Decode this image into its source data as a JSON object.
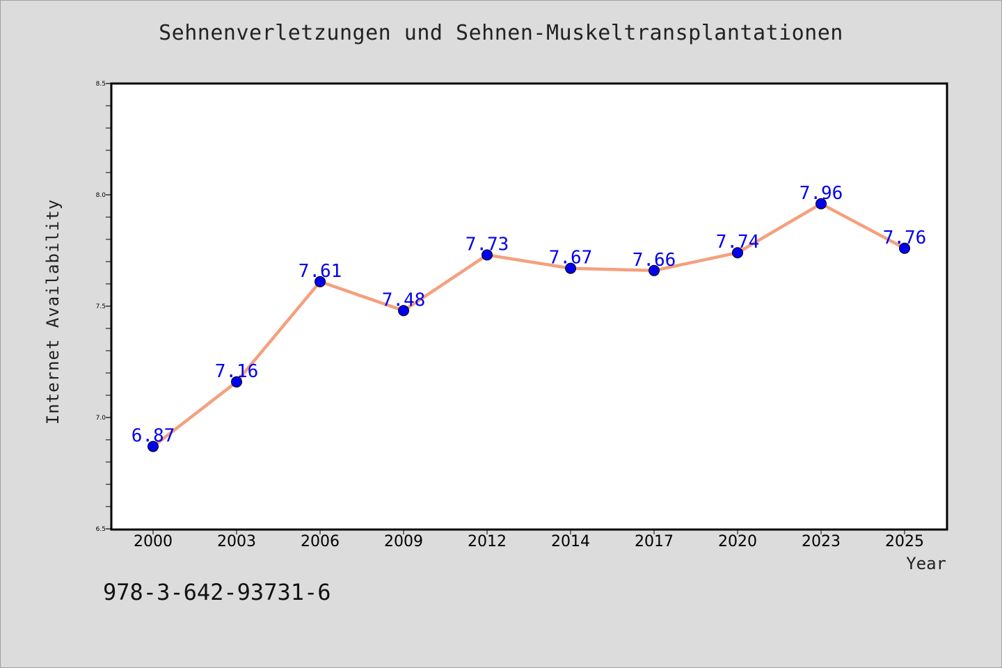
{
  "chart_data": {
    "type": "line",
    "title": "Sehnenverletzungen und Sehnen-Muskeltransplantationen",
    "xlabel": "Year",
    "ylabel": "Internet Availability",
    "categories": [
      "2000",
      "2003",
      "2006",
      "2009",
      "2012",
      "2014",
      "2017",
      "2020",
      "2023",
      "2025"
    ],
    "series": [
      {
        "values": [
          6.87,
          7.16,
          7.61,
          7.48,
          7.73,
          7.67,
          7.66,
          7.74,
          7.96,
          7.76
        ],
        "line_color": "#f4a07e",
        "marker_color": "#0000ee",
        "label_color": "#0000ee"
      }
    ],
    "ylim": [
      6.5,
      8.5
    ],
    "yticks": [
      "6.5",
      "7.0",
      "7.5",
      "8.0",
      "8.5"
    ],
    "grid": false,
    "data_labels": true
  },
  "footnote": "978-3-642-93731-6"
}
